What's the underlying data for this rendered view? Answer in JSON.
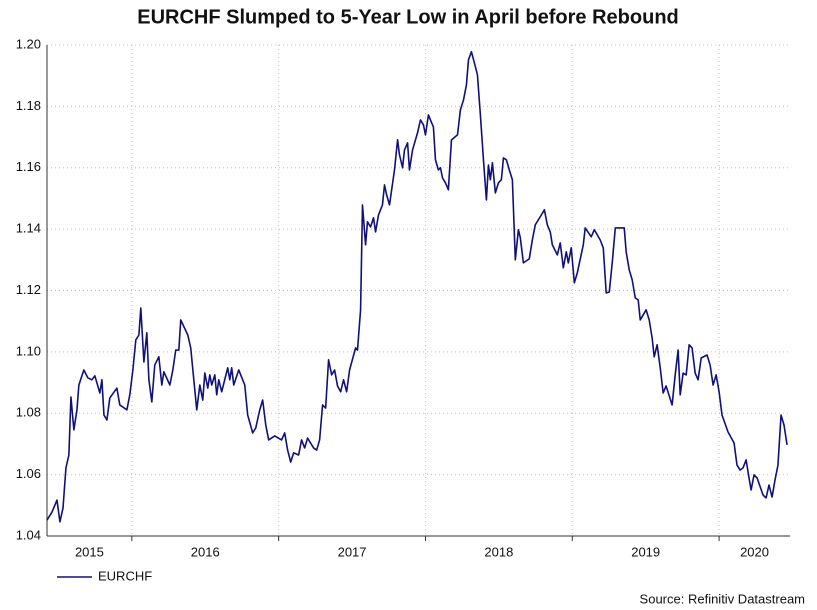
{
  "chart_data": {
    "type": "line",
    "title": "EURCHF Slumped to 5-Year Low in April before Rebound",
    "source": "Source: Refinitiv Datastream",
    "x": [
      2015.422,
      2015.456,
      2015.49,
      2015.51,
      2015.531,
      2015.551,
      2015.571,
      2015.585,
      2015.605,
      2015.626,
      2015.639,
      2015.673,
      2015.701,
      2015.728,
      2015.748,
      2015.782,
      2015.796,
      2015.81,
      2015.83,
      2015.85,
      2015.898,
      2015.918,
      2015.966,
      2015.986,
      2016.007,
      2016.027,
      2016.048,
      2016.061,
      2016.082,
      2016.102,
      2016.116,
      2016.136,
      2016.156,
      2016.184,
      2016.204,
      2016.218,
      2016.259,
      2016.279,
      2016.299,
      2016.32,
      2016.333,
      2016.381,
      2016.401,
      2016.422,
      2016.442,
      2016.463,
      2016.483,
      2016.497,
      2016.517,
      2016.531,
      2016.544,
      2016.565,
      2016.578,
      2016.592,
      2016.612,
      2016.653,
      2016.667,
      2016.68,
      2016.694,
      2016.728,
      2016.769,
      2016.789,
      2016.823,
      2016.844,
      2016.871,
      2016.891,
      2016.912,
      2016.932,
      2016.973,
      2017.02,
      2017.041,
      2017.061,
      2017.082,
      2017.102,
      2017.136,
      2017.156,
      2017.177,
      2017.197,
      2017.238,
      2017.259,
      2017.279,
      2017.299,
      2017.32,
      2017.34,
      2017.361,
      2017.381,
      2017.401,
      2017.422,
      2017.442,
      2017.463,
      2017.483,
      2017.524,
      2017.537,
      2017.558,
      2017.571,
      2017.592,
      2017.605,
      2017.626,
      2017.646,
      2017.66,
      2017.68,
      2017.707,
      2017.721,
      2017.735,
      2017.755,
      2017.789,
      2017.81,
      2017.823,
      2017.844,
      2017.857,
      2017.878,
      2017.891,
      2017.912,
      2017.946,
      2017.966,
      2017.986,
      2018.0,
      2018.02,
      2018.034,
      2018.054,
      2018.068,
      2018.088,
      2018.102,
      2018.116,
      2018.136,
      2018.156,
      2018.177,
      2018.218,
      2018.238,
      2018.259,
      2018.279,
      2018.293,
      2018.313,
      2018.333,
      2018.354,
      2018.374,
      2018.395,
      2018.415,
      2018.429,
      2018.442,
      2018.456,
      2018.476,
      2018.497,
      2018.517,
      2018.531,
      2018.551,
      2018.571,
      2018.592,
      2018.612,
      2018.633,
      2018.646,
      2018.667,
      2018.707,
      2018.728,
      2018.748,
      2018.789,
      2018.81,
      2018.83,
      2018.85,
      2018.864,
      2018.898,
      2018.918,
      2018.939,
      2018.959,
      2018.973,
      2018.993,
      2019.014,
      2019.034,
      2019.075,
      2019.088,
      2019.129,
      2019.15,
      2019.19,
      2019.211,
      2019.231,
      2019.252,
      2019.272,
      2019.293,
      2019.354,
      2019.367,
      2019.388,
      2019.408,
      2019.429,
      2019.449,
      2019.463,
      2019.503,
      2019.524,
      2019.544,
      2019.558,
      2019.578,
      2019.599,
      2019.619,
      2019.639,
      2019.68,
      2019.701,
      2019.721,
      2019.735,
      2019.755,
      2019.776,
      2019.796,
      2019.816,
      2019.837,
      2019.857,
      2019.878,
      2019.918,
      2019.939,
      2019.959,
      2019.98,
      2020.0,
      2020.02,
      2020.061,
      2020.102,
      2020.122,
      2020.143,
      2020.163,
      2020.184,
      2020.204,
      2020.218,
      2020.238,
      2020.259,
      2020.299,
      2020.32,
      2020.34,
      2020.361,
      2020.381,
      2020.401,
      2020.422,
      2020.442,
      2020.463
    ],
    "series": [
      {
        "name": "EURCHF",
        "color": "#10107a",
        "values": [
          1.0452,
          1.0478,
          1.0517,
          1.0446,
          1.0491,
          1.0622,
          1.0664,
          1.0853,
          1.0746,
          1.0811,
          1.0892,
          1.0941,
          1.0915,
          1.0909,
          1.0922,
          1.0866,
          1.0909,
          1.0794,
          1.0778,
          1.085,
          1.0882,
          1.0827,
          1.0811,
          1.086,
          1.0941,
          1.1039,
          1.1055,
          1.1143,
          1.0967,
          1.1062,
          1.0909,
          1.0837,
          1.0957,
          1.0984,
          1.0892,
          1.0935,
          1.0892,
          1.0941,
          1.1006,
          1.1006,
          1.1104,
          1.1055,
          1.1013,
          1.0909,
          1.0811,
          1.0892,
          1.0843,
          1.0931,
          1.0882,
          1.0925,
          1.0892,
          1.0925,
          1.086,
          1.0909,
          1.087,
          1.0948,
          1.0909,
          1.0948,
          1.0892,
          1.0941,
          1.0892,
          1.0794,
          1.0736,
          1.0752,
          1.0811,
          1.0843,
          1.0762,
          1.0713,
          1.0726,
          1.0713,
          1.0736,
          1.068,
          1.0641,
          1.0671,
          1.0664,
          1.0713,
          1.0687,
          1.0719,
          1.0687,
          1.068,
          1.0713,
          1.0827,
          1.0817,
          1.0974,
          1.0925,
          1.0941,
          1.0889,
          1.087,
          1.0909,
          1.087,
          1.0941,
          1.1013,
          1.1006,
          1.1137,
          1.1479,
          1.1349,
          1.1424,
          1.1407,
          1.1437,
          1.1391,
          1.1446,
          1.1479,
          1.1544,
          1.1512,
          1.1479,
          1.1593,
          1.1691,
          1.1642,
          1.16,
          1.1658,
          1.1681,
          1.1593,
          1.1658,
          1.1714,
          1.1756,
          1.174,
          1.1707,
          1.1772,
          1.1756,
          1.1733,
          1.1626,
          1.1593,
          1.16,
          1.1567,
          1.1551,
          1.1528,
          1.1691,
          1.1707,
          1.1789,
          1.1821,
          1.187,
          1.1952,
          1.1978,
          1.1942,
          1.1903,
          1.1772,
          1.1626,
          1.1495,
          1.1609,
          1.1561,
          1.1616,
          1.1518,
          1.1551,
          1.1561,
          1.1632,
          1.1626,
          1.1593,
          1.1561,
          1.13,
          1.1398,
          1.1372,
          1.129,
          1.1303,
          1.1365,
          1.1414,
          1.1446,
          1.1463,
          1.1414,
          1.1391,
          1.1349,
          1.1316,
          1.1355,
          1.1274,
          1.1326,
          1.129,
          1.1339,
          1.1225,
          1.1257,
          1.1349,
          1.1404,
          1.1375,
          1.1398,
          1.1365,
          1.1339,
          1.1192,
          1.1195,
          1.129,
          1.1404,
          1.1404,
          1.1326,
          1.1267,
          1.1235,
          1.1176,
          1.1169,
          1.1104,
          1.1137,
          1.1104,
          1.1045,
          1.0984,
          1.1023,
          1.0948,
          1.0866,
          1.0889,
          1.0827,
          1.0925,
          1.1006,
          1.086,
          1.0931,
          1.0925,
          1.1023,
          1.1013,
          1.0931,
          1.0909,
          1.098,
          1.099,
          1.0957,
          1.0892,
          1.0925,
          1.087,
          1.0794,
          1.0739,
          1.0703,
          1.0631,
          1.0615,
          1.0622,
          1.0648,
          1.0589,
          1.055,
          1.0599,
          1.0589,
          1.0534,
          1.0524,
          1.0566,
          1.0527,
          1.0583,
          1.0631,
          1.0794,
          1.0762,
          1.0697
        ]
      }
    ],
    "xlim": [
      2015.422,
      2020.483
    ],
    "x_grid": [
      2016,
      2017,
      2018,
      2019,
      2020
    ],
    "x_labels": [
      "2015",
      "2016",
      "2017",
      "2018",
      "2019",
      "2020"
    ],
    "ylim": [
      1.04,
      1.2
    ],
    "yticks": [
      1.04,
      1.06,
      1.08,
      {
        "value": 1.1,
        "label": "1.10"
      },
      1.12,
      1.14,
      1.16,
      1.18,
      {
        "value": 1.2,
        "label": "1.20"
      }
    ],
    "grid": true,
    "legend": "bottom-left"
  }
}
